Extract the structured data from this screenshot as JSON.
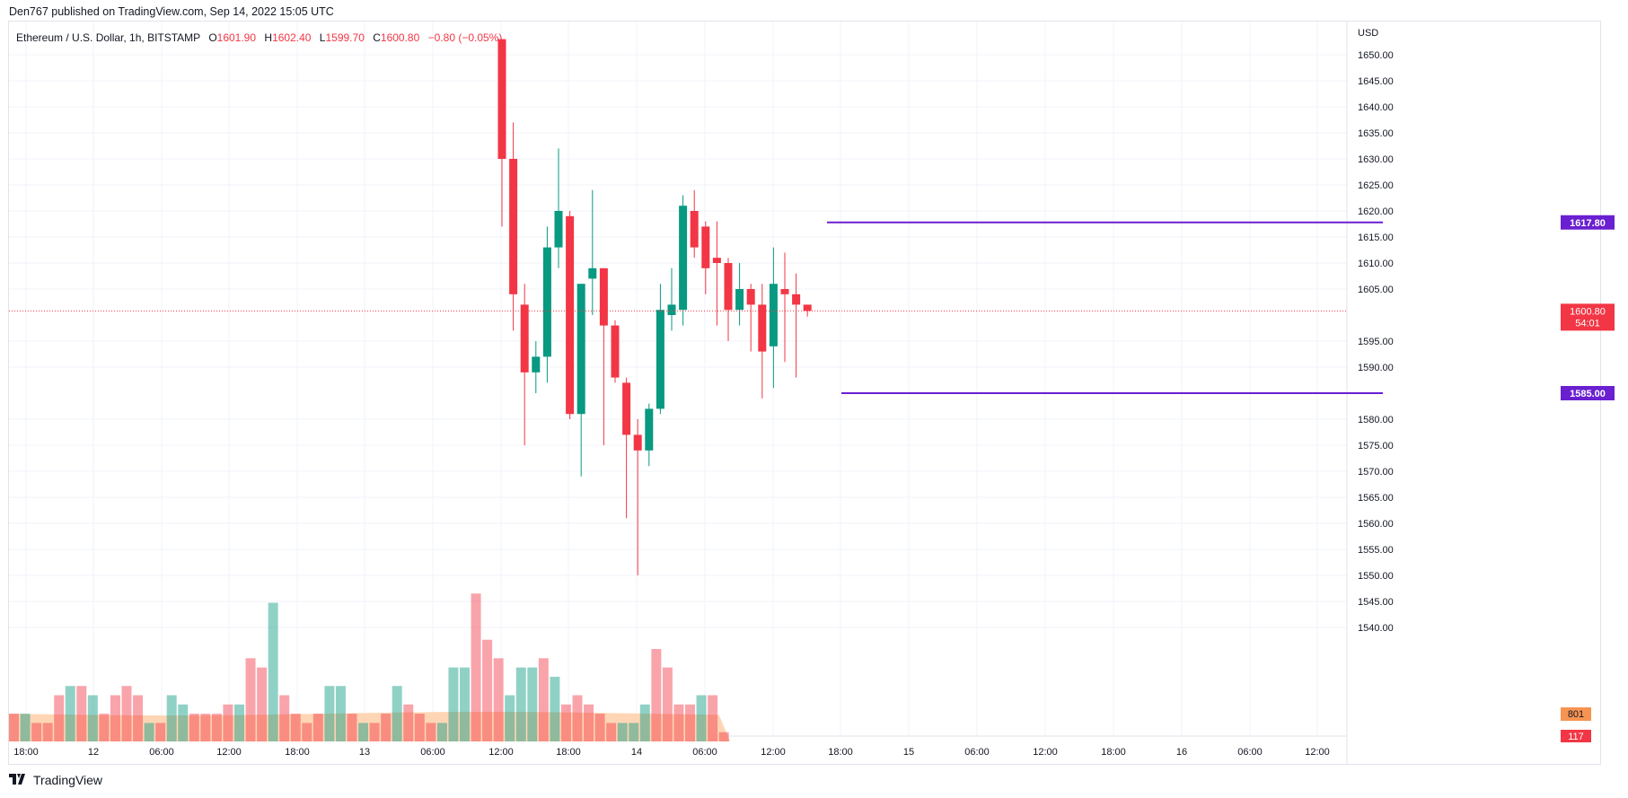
{
  "header": {
    "text": "Den767 published on TradingView.com, Sep 14, 2022 15:05 UTC"
  },
  "legend": {
    "symbol": "Ethereum / U.S. Dollar, 1h, BITSTAMP",
    "o_label": "O",
    "o_value": "1601.90",
    "h_label": "H",
    "h_value": "1602.40",
    "l_label": "L",
    "l_value": "1599.70",
    "c_label": "C",
    "c_value": "1600.80",
    "change": "−0.80 (−0.05%)"
  },
  "footer": {
    "brand": "TradingView"
  },
  "colors": {
    "up": "#089981",
    "down": "#f23645",
    "level": "#6a1fd0",
    "volume_ma": "#ffcfa8",
    "grid": "#f0f3fa"
  },
  "chart_data": {
    "type": "candlestick",
    "title": "Ethereum / U.S. Dollar, 1h, BITSTAMP",
    "currency": "USD",
    "price_axis": {
      "ylim": [
        1535.0,
        1655.0
      ],
      "ticks": [
        "1650.00",
        "1645.00",
        "1640.00",
        "1635.00",
        "1630.00",
        "1625.00",
        "1620.00",
        "1615.00",
        "1610.00",
        "1605.00",
        "1595.00",
        "1590.00",
        "1580.00",
        "1575.00",
        "1570.00",
        "1565.00",
        "1560.00",
        "1555.00",
        "1550.00",
        "1545.00",
        "1540.00"
      ],
      "placement": "right"
    },
    "time_axis": {
      "ticks": [
        "18:00",
        "12",
        "06:00",
        "12:00",
        "18:00",
        "13",
        "06:00",
        "12:00",
        "18:00",
        "14",
        "06:00",
        "12:00",
        "18:00",
        "15",
        "06:00",
        "12:00",
        "18:00",
        "16",
        "06:00",
        "12:00"
      ]
    },
    "grid": true,
    "current_price": {
      "value": 1600.8,
      "label": "1600.80",
      "countdown": "54:01"
    },
    "levels": [
      {
        "label": "1617.80",
        "value": 1617.8
      },
      {
        "label": "1585.00",
        "value": 1585.0
      }
    ],
    "volume": {
      "last": "117",
      "ma": "801",
      "values": [
        4,
        4,
        4,
        5,
        5,
        5,
        4,
        5,
        4,
        4,
        5,
        4,
        4,
        4,
        4,
        5,
        4,
        4,
        4,
        4,
        7,
        4,
        4,
        4,
        4,
        4,
        4,
        5,
        5,
        4,
        4,
        5,
        4,
        4,
        4,
        4,
        5,
        4,
        4,
        4,
        5,
        13,
        10,
        13,
        13,
        14,
        15,
        13,
        15,
        15,
        20,
        32,
        36,
        39,
        44,
        44,
        42,
        54,
        49,
        55,
        61,
        100,
        73,
        82,
        83,
        82,
        84,
        86,
        63,
        55,
        86,
        58,
        84,
        53,
        43,
        33,
        29,
        32,
        43,
        35,
        49,
        38,
        32,
        33,
        41,
        34,
        35,
        36,
        47,
        34,
        22,
        23,
        21,
        24,
        24,
        24,
        23,
        23,
        22,
        23,
        22,
        22,
        20,
        19,
        18,
        16,
        17,
        17,
        17,
        17,
        17,
        17,
        17,
        17,
        17,
        17,
        17,
        17,
        17
      ],
      "up": [
        false,
        true,
        false,
        true,
        false,
        false,
        false,
        false,
        true,
        false,
        true,
        false,
        false,
        true,
        false,
        false,
        true,
        false,
        false,
        true,
        false,
        false,
        true,
        false,
        false,
        false,
        true,
        false,
        true,
        false,
        false,
        false,
        true,
        false,
        false,
        true,
        false,
        false,
        false,
        false,
        false,
        true,
        false,
        false,
        true,
        false,
        true,
        false,
        false,
        false,
        true,
        true,
        false,
        false,
        false,
        true,
        true,
        true,
        false,
        true,
        false,
        false,
        false,
        false,
        false,
        true,
        false,
        false,
        false,
        true,
        false,
        false,
        true,
        false,
        false,
        false,
        false,
        false,
        false,
        false,
        false,
        true,
        false,
        false,
        false,
        true,
        false,
        false,
        false,
        false,
        false,
        false,
        false,
        false,
        false,
        false,
        false,
        false,
        false,
        false,
        false,
        false,
        false,
        false,
        false,
        false,
        false,
        false,
        false,
        false,
        false,
        false,
        false,
        false,
        false,
        false,
        false,
        false,
        false,
        false
      ],
      "bars": [
        {
          "v": 3,
          "up": false
        },
        {
          "v": 3,
          "up": true
        },
        {
          "v": 2,
          "up": false
        },
        {
          "v": 2,
          "up": false
        },
        {
          "v": 5,
          "up": false
        },
        {
          "v": 6,
          "up": true
        },
        {
          "v": 6,
          "up": false
        },
        {
          "v": 5,
          "up": true
        },
        {
          "v": 3,
          "up": false
        },
        {
          "v": 5,
          "up": false
        },
        {
          "v": 6,
          "up": false
        },
        {
          "v": 5,
          "up": false
        },
        {
          "v": 2,
          "up": true
        },
        {
          "v": 2,
          "up": false
        },
        {
          "v": 5,
          "up": true
        },
        {
          "v": 4,
          "up": true
        },
        {
          "v": 3,
          "up": false
        },
        {
          "v": 3,
          "up": false
        },
        {
          "v": 3,
          "up": false
        },
        {
          "v": 4,
          "up": false
        },
        {
          "v": 4,
          "up": true
        },
        {
          "v": 9,
          "up": false
        },
        {
          "v": 8,
          "up": false
        },
        {
          "v": 15,
          "up": true
        },
        {
          "v": 5,
          "up": false
        },
        {
          "v": 3,
          "up": false
        },
        {
          "v": 2,
          "up": false
        },
        {
          "v": 3,
          "up": false
        },
        {
          "v": 6,
          "up": true
        },
        {
          "v": 6,
          "up": true
        },
        {
          "v": 3,
          "up": false
        },
        {
          "v": 2,
          "up": true
        },
        {
          "v": 2,
          "up": false
        },
        {
          "v": 3,
          "up": false
        },
        {
          "v": 6,
          "up": true
        },
        {
          "v": 4,
          "up": false
        },
        {
          "v": 3,
          "up": false
        },
        {
          "v": 2,
          "up": false
        },
        {
          "v": 2,
          "up": true
        },
        {
          "v": 8,
          "up": true
        },
        {
          "v": 8,
          "up": true
        },
        {
          "v": 16,
          "up": false
        },
        {
          "v": 11,
          "up": false
        },
        {
          "v": 9,
          "up": false
        },
        {
          "v": 5,
          "up": true
        },
        {
          "v": 8,
          "up": true
        },
        {
          "v": 8,
          "up": true
        },
        {
          "v": 9,
          "up": false
        },
        {
          "v": 7,
          "up": true
        },
        {
          "v": 4,
          "up": false
        },
        {
          "v": 5,
          "up": false
        },
        {
          "v": 4,
          "up": false
        },
        {
          "v": 3,
          "up": false
        },
        {
          "v": 2,
          "up": false
        },
        {
          "v": 2,
          "up": true
        },
        {
          "v": 2,
          "up": true
        },
        {
          "v": 4,
          "up": true
        },
        {
          "v": 10,
          "up": false
        },
        {
          "v": 8,
          "up": false
        },
        {
          "v": 4,
          "up": false
        },
        {
          "v": 4,
          "up": false
        },
        {
          "v": 5,
          "up": true
        },
        {
          "v": 5,
          "up": false
        },
        {
          "v": 1,
          "up": false
        }
      ]
    },
    "candles": [
      {
        "o": 1653,
        "h": 1653,
        "l": 1617,
        "c": 1630
      },
      {
        "o": 1630,
        "h": 1637,
        "l": 1597,
        "c": 1604
      },
      {
        "o": 1602,
        "h": 1606,
        "l": 1575,
        "c": 1589
      },
      {
        "o": 1589,
        "h": 1595,
        "l": 1585,
        "c": 1592
      },
      {
        "o": 1592,
        "h": 1617,
        "l": 1587,
        "c": 1613
      },
      {
        "o": 1613,
        "h": 1632,
        "l": 1609,
        "c": 1620
      },
      {
        "o": 1619,
        "h": 1620,
        "l": 1580,
        "c": 1581
      },
      {
        "o": 1581,
        "h": 1606,
        "l": 1569,
        "c": 1606
      },
      {
        "o": 1607,
        "h": 1624,
        "l": 1600,
        "c": 1609
      },
      {
        "o": 1609,
        "h": 1609,
        "l": 1575,
        "c": 1598
      },
      {
        "o": 1598,
        "h": 1599,
        "l": 1587,
        "c": 1588
      },
      {
        "o": 1587,
        "h": 1588,
        "l": 1561,
        "c": 1577
      },
      {
        "o": 1577,
        "h": 1580,
        "l": 1550,
        "c": 1574
      },
      {
        "o": 1574,
        "h": 1583,
        "l": 1571,
        "c": 1582
      },
      {
        "o": 1582,
        "h": 1606,
        "l": 1581,
        "c": 1601
      },
      {
        "o": 1600,
        "h": 1609,
        "l": 1597,
        "c": 1602
      },
      {
        "o": 1601,
        "h": 1623,
        "l": 1598,
        "c": 1621
      },
      {
        "o": 1620,
        "h": 1624,
        "l": 1611,
        "c": 1613
      },
      {
        "o": 1617,
        "h": 1618,
        "l": 1604,
        "c": 1609
      },
      {
        "o": 1611,
        "h": 1618,
        "l": 1598,
        "c": 1610
      },
      {
        "o": 1610,
        "h": 1611,
        "l": 1595,
        "c": 1601
      },
      {
        "o": 1601,
        "h": 1610,
        "l": 1598,
        "c": 1605
      },
      {
        "o": 1605,
        "h": 1606,
        "l": 1593,
        "c": 1602
      },
      {
        "o": 1602,
        "h": 1606,
        "l": 1584,
        "c": 1593
      },
      {
        "o": 1594,
        "h": 1613,
        "l": 1586,
        "c": 1606
      },
      {
        "o": 1605,
        "h": 1612,
        "l": 1591,
        "c": 1604
      },
      {
        "o": 1604,
        "h": 1608,
        "l": 1588,
        "c": 1602
      },
      {
        "o": 1602,
        "h": 1602,
        "l": 1599.7,
        "c": 1600.8
      }
    ]
  }
}
